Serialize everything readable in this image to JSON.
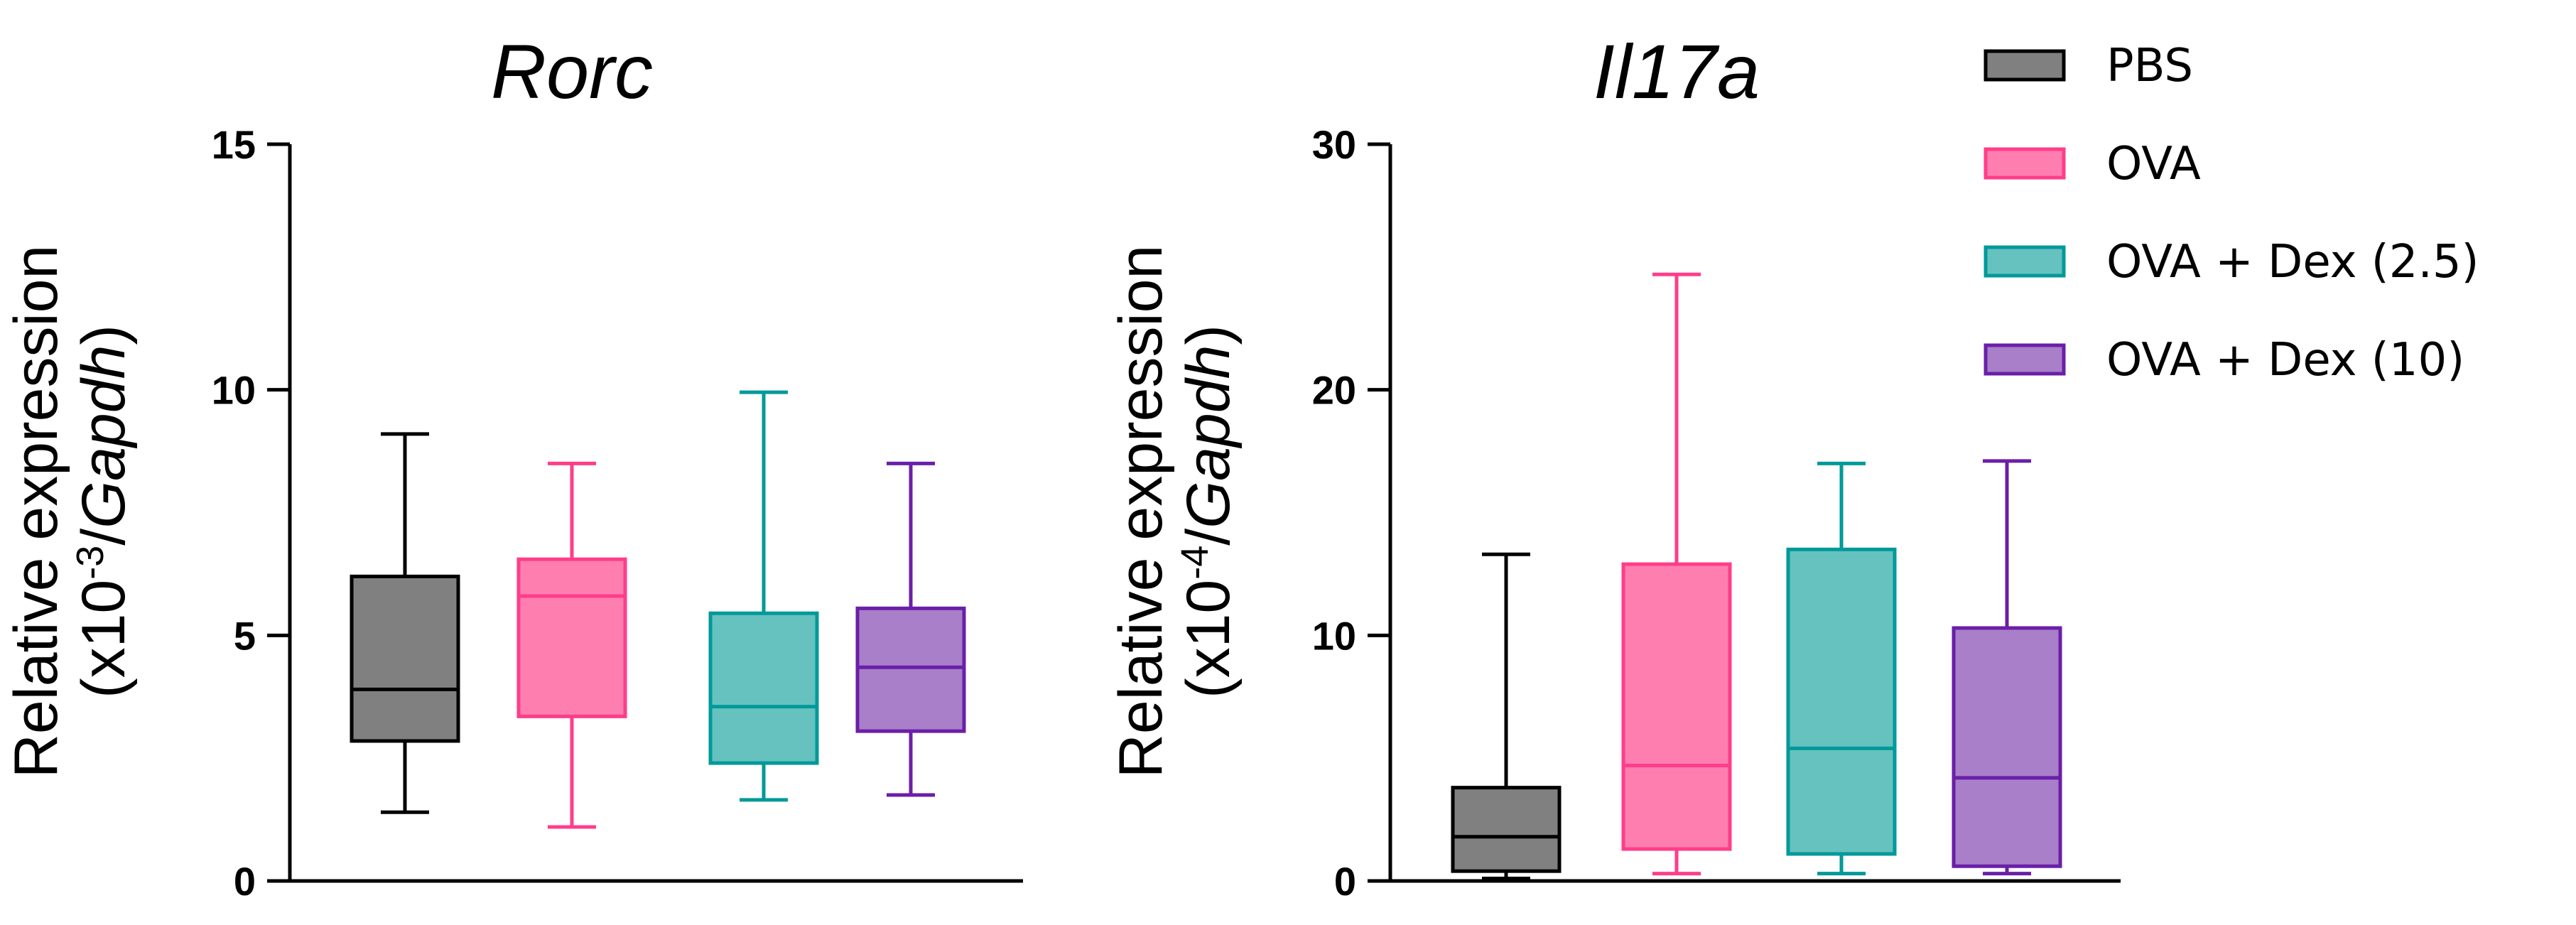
{
  "chart_data": [
    {
      "type": "box",
      "title": "Rorc",
      "ylabel": {
        "line1": "Relative expression",
        "line2_prefix": "(x10",
        "line2_exp": "-3",
        "line2_mid": "/",
        "line2_gene": "Gapdh",
        "line2_suffix": ")"
      },
      "ylim": [
        0,
        15
      ],
      "yticks": [
        0,
        5,
        10,
        15
      ],
      "ytick_labels": [
        "0",
        "5",
        "10",
        "15"
      ],
      "groups": [
        {
          "name": "PBS",
          "min": 1.4,
          "q1": 2.85,
          "median": 3.9,
          "q3": 6.2,
          "max": 9.1
        },
        {
          "name": "OVA",
          "min": 1.1,
          "q1": 3.35,
          "median": 5.8,
          "q3": 6.55,
          "max": 8.5
        },
        {
          "name": "OVA + Dex (2.5)",
          "min": 1.65,
          "q1": 2.4,
          "median": 3.55,
          "q3": 5.45,
          "max": 9.95
        },
        {
          "name": "OVA + Dex (10)",
          "min": 1.75,
          "q1": 3.05,
          "median": 4.35,
          "q3": 5.55,
          "max": 8.5
        }
      ]
    },
    {
      "type": "box",
      "title": "Il17a",
      "ylabel": {
        "line1": "Relative expression",
        "line2_prefix": "(x10",
        "line2_exp": "-4",
        "line2_mid": "/",
        "line2_gene": "Gapdh",
        "line2_suffix": ")"
      },
      "ylim": [
        0,
        30
      ],
      "yticks": [
        0,
        10,
        20,
        30
      ],
      "ytick_labels": [
        "0",
        "10",
        "20",
        "30"
      ],
      "groups": [
        {
          "name": "PBS",
          "min": 0.1,
          "q1": 0.4,
          "median": 1.8,
          "q3": 3.8,
          "max": 13.3
        },
        {
          "name": "OVA",
          "min": 0.3,
          "q1": 1.3,
          "median": 4.7,
          "q3": 12.9,
          "max": 24.7
        },
        {
          "name": "OVA + Dex (2.5)",
          "min": 0.3,
          "q1": 1.1,
          "median": 5.4,
          "q3": 13.5,
          "max": 17.0
        },
        {
          "name": "OVA + Dex (10)",
          "min": 0.3,
          "q1": 0.6,
          "median": 4.2,
          "q3": 10.3,
          "max": 17.1
        }
      ]
    }
  ],
  "legend": {
    "position": "top-right",
    "items": [
      {
        "label": "PBS",
        "fill": "#808080",
        "stroke": "#000000"
      },
      {
        "label": "OVA",
        "fill": "#ff7eb0",
        "stroke": "#ff3d8a"
      },
      {
        "label": "OVA + Dex (2.5)",
        "fill": "#66c2bf",
        "stroke": "#009999"
      },
      {
        "label": "OVA + Dex (10)",
        "fill": "#a87fc8",
        "stroke": "#6a1fa8"
      }
    ]
  }
}
